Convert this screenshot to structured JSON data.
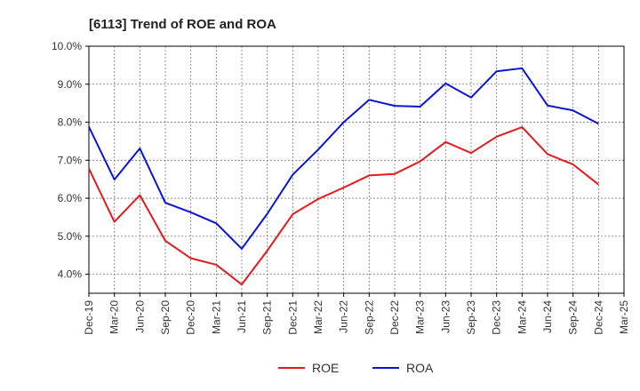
{
  "chart_data": {
    "type": "line",
    "title": "[6113]  Trend of ROE and ROA",
    "x": [
      "Dec-19",
      "Mar-20",
      "Jun-20",
      "Sep-20",
      "Dec-20",
      "Mar-21",
      "Jun-21",
      "Sep-21",
      "Dec-21",
      "Mar-22",
      "Jun-22",
      "Sep-22",
      "Dec-22",
      "Mar-23",
      "Jun-23",
      "Sep-23",
      "Dec-23",
      "Mar-24",
      "Jun-24",
      "Sep-24",
      "Dec-24",
      "Mar-25"
    ],
    "yticks": [
      "4.0%",
      "5.0%",
      "6.0%",
      "7.0%",
      "8.0%",
      "9.0%",
      "10.0%"
    ],
    "ylim": [
      3.5,
      10.0
    ],
    "grid": true,
    "legend_position": "bottom",
    "series": [
      {
        "name": "ROE",
        "color": "#e41a1c",
        "values": [
          6.78,
          5.38,
          6.08,
          4.88,
          4.42,
          4.25,
          3.73,
          4.62,
          5.58,
          5.98,
          6.28,
          6.6,
          6.64,
          6.97,
          7.48,
          7.19,
          7.62,
          7.87,
          7.16,
          6.89,
          6.36,
          null
        ]
      },
      {
        "name": "ROA",
        "color": "#0a14d6",
        "values": [
          7.88,
          6.49,
          7.31,
          5.88,
          5.63,
          5.34,
          4.67,
          5.59,
          6.62,
          7.28,
          8.0,
          8.59,
          8.43,
          8.41,
          9.02,
          8.65,
          9.34,
          9.42,
          8.44,
          8.31,
          7.96,
          null
        ]
      }
    ]
  }
}
